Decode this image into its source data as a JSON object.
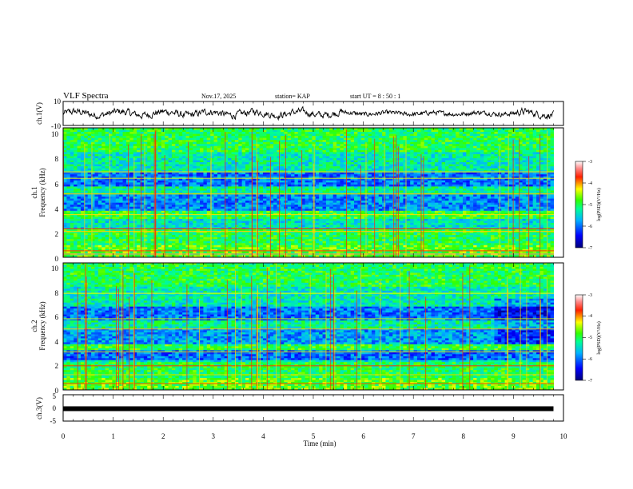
{
  "header": {
    "title": "VLF Spectra",
    "date": "Nov.17, 2025",
    "station": "station= KAP",
    "start_ut": "start  UT =   8  : 50 : 1"
  },
  "chart_data": [
    {
      "type": "line",
      "name": "ch1-waveform",
      "ylabel": "ch.1(V)",
      "xlim": [
        0,
        10
      ],
      "ylim": [
        -10,
        10
      ],
      "yticks": [
        "10",
        "-10"
      ],
      "x_end": 9.8,
      "note": "waveform approx between -4 and 4 V"
    },
    {
      "type": "heatmap",
      "name": "ch1-spectrogram",
      "ylabel_lines": [
        "ch.1",
        "Frequency  (kHz)"
      ],
      "xlim": [
        0,
        10
      ],
      "ylim": [
        0,
        10
      ],
      "yticks": [
        "10",
        "8",
        "6",
        "4",
        "2",
        "0"
      ],
      "colorbar": {
        "ticks": [
          "-3",
          "-4",
          "-5",
          "-6",
          "-7"
        ],
        "label": "log(PSD)(V²/Hz)",
        "range": [
          -7,
          -3
        ]
      }
    },
    {
      "type": "heatmap",
      "name": "ch2-spectrogram",
      "ylabel_lines": [
        "ch.2",
        "Frequency  (kHz)"
      ],
      "xlim": [
        0,
        10
      ],
      "ylim": [
        0,
        10
      ],
      "yticks": [
        "10",
        "8",
        "6",
        "4",
        "2",
        "0"
      ],
      "colorbar": {
        "ticks": [
          "-3",
          "-4",
          "-5",
          "-6",
          "-7"
        ],
        "label": "log(PSD)(V²/Hz)",
        "range": [
          -7,
          -3
        ]
      }
    },
    {
      "type": "line",
      "name": "ch3-waveform",
      "ylabel": "ch.3(V)",
      "xlim": [
        0,
        10
      ],
      "ylim": [
        -5,
        5
      ],
      "yticks": [
        "5",
        "0",
        "-5"
      ],
      "level": -0.3
    }
  ],
  "xaxis": {
    "label": "Time  (min)",
    "ticks": [
      "0",
      "1",
      "2",
      "3",
      "4",
      "5",
      "6",
      "7",
      "8",
      "9",
      "10"
    ]
  }
}
